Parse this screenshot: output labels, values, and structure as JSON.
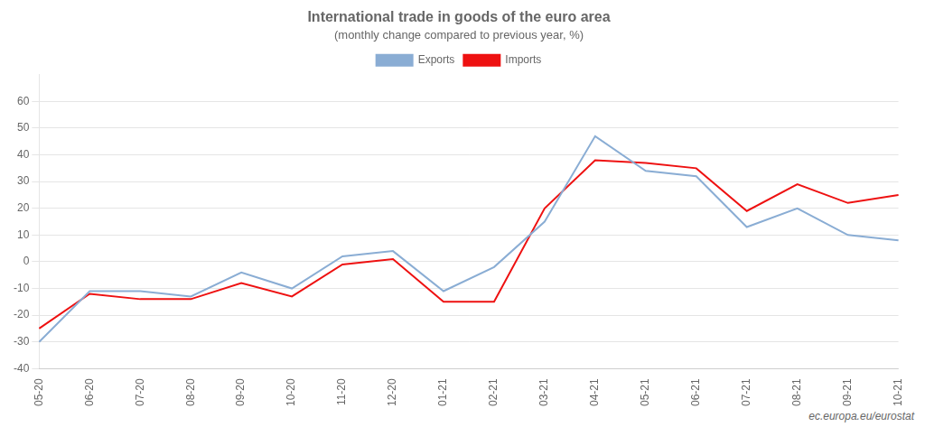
{
  "chart_data": {
    "type": "line",
    "title": "International trade in goods of the euro area",
    "subtitle": "(monthly change compared to previous year, %)",
    "categories": [
      "05-20",
      "06-20",
      "07-20",
      "08-20",
      "09-20",
      "10-20",
      "11-20",
      "12-20",
      "01-21",
      "02-21",
      "03-21",
      "04-21",
      "05-21",
      "06-21",
      "07-21",
      "08-21",
      "09-21",
      "10-21"
    ],
    "series": [
      {
        "name": "Exports",
        "color": "#8aadd4",
        "values": [
          -30,
          -11,
          -11,
          -13,
          -4,
          -10,
          2,
          4,
          -11,
          -2,
          15,
          47,
          34,
          32,
          13,
          20,
          10,
          8
        ]
      },
      {
        "name": "Imports",
        "color": "#ee1111",
        "values": [
          -25,
          -12,
          -14,
          -14,
          -8,
          -13,
          -1,
          1,
          -15,
          -15,
          20,
          38,
          37,
          35,
          19,
          29,
          22,
          25
        ]
      }
    ],
    "ylim": [
      -40,
      70
    ],
    "yticks": [
      -40,
      -30,
      -20,
      -10,
      0,
      10,
      20,
      30,
      40,
      50,
      60
    ],
    "grid": true,
    "legend": "top",
    "annotations": [
      "ec.europa.eu/eurostat"
    ]
  }
}
